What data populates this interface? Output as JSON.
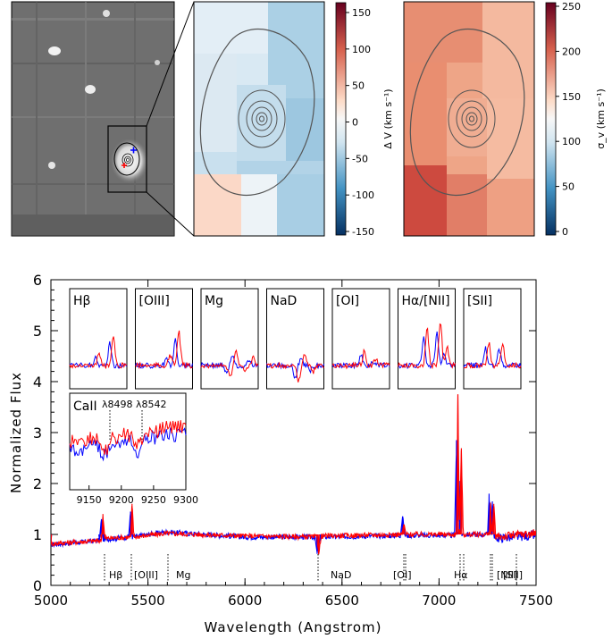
{
  "figure": {
    "panel_top_left": {
      "description_visible": false
    },
    "velocity_map": {
      "colorbar_ticks": [
        "150",
        "100",
        "50",
        "0",
        "-50",
        "-100",
        "-150"
      ],
      "colorbar_label": "Δ V (km s⁻¹)"
    },
    "dispersion_map": {
      "colorbar_ticks": [
        "250",
        "200",
        "150",
        "100",
        "50",
        "0"
      ],
      "colorbar_label": "σ_v (km s⁻¹)"
    }
  },
  "chart_data": [
    {
      "type": "line",
      "title": "",
      "xlabel": "Wavelength (Angstrom)",
      "ylabel": "Normalized Flux",
      "xlim": [
        5000,
        7500
      ],
      "ylim": [
        0,
        6
      ],
      "x_ticks": [
        "5000",
        "5500",
        "6000",
        "6500",
        "7000",
        "7500"
      ],
      "y_ticks": [
        "0",
        "1",
        "2",
        "3",
        "4",
        "5",
        "6"
      ],
      "series": [
        {
          "color": "#0000ff",
          "points": [
            [
              5000,
              0.8
            ],
            [
              5250,
              0.88
            ],
            [
              5260,
              1.3
            ],
            [
              5270,
              0.9
            ],
            [
              5400,
              0.95
            ],
            [
              5410,
              1.45
            ],
            [
              5420,
              0.95
            ],
            [
              5590,
              1.05
            ],
            [
              6000,
              0.95
            ],
            [
              6360,
              0.95
            ],
            [
              6372,
              0.62
            ],
            [
              6390,
              0.95
            ],
            [
              6800,
              0.98
            ],
            [
              6812,
              1.35
            ],
            [
              6825,
              0.98
            ],
            [
              7080,
              0.98
            ],
            [
              7090,
              2.85
            ],
            [
              7098,
              1.05
            ],
            [
              7108,
              2.05
            ],
            [
              7118,
              1.0
            ],
            [
              7250,
              1.0
            ],
            [
              7258,
              1.8
            ],
            [
              7266,
              1.0
            ],
            [
              7275,
              1.65
            ],
            [
              7285,
              0.92
            ],
            [
              7500,
              0.98
            ]
          ]
        },
        {
          "color": "#ff0000",
          "points": [
            [
              5000,
              0.82
            ],
            [
              5260,
              0.88
            ],
            [
              5268,
              1.4
            ],
            [
              5278,
              0.92
            ],
            [
              5410,
              0.95
            ],
            [
              5418,
              1.6
            ],
            [
              5428,
              0.95
            ],
            [
              5590,
              1.02
            ],
            [
              6000,
              0.97
            ],
            [
              6370,
              0.95
            ],
            [
              6380,
              0.65
            ],
            [
              6395,
              0.97
            ],
            [
              6810,
              1.0
            ],
            [
              6818,
              1.2
            ],
            [
              6830,
              1.0
            ],
            [
              7090,
              1.0
            ],
            [
              7097,
              3.75
            ],
            [
              7105,
              1.1
            ],
            [
              7115,
              2.65
            ],
            [
              7125,
              1.0
            ],
            [
              7258,
              1.0
            ],
            [
              7265,
              1.6
            ],
            [
              7273,
              1.0
            ],
            [
              7282,
              1.6
            ],
            [
              7292,
              0.95
            ],
            [
              7500,
              1.02
            ]
          ]
        }
      ],
      "line_labels": [
        "Hβ",
        "[OIII]",
        "Mg",
        "NaD",
        "[OI]",
        "Hα",
        "[NII]",
        "[SII]"
      ]
    },
    {
      "type": "line",
      "title": "",
      "panels": [
        "Hβ",
        "[OIII]",
        "Mg",
        "NaD",
        "[OI]",
        "Hα/[NII]",
        "[SII]"
      ]
    },
    {
      "type": "line",
      "title": "",
      "label": "CaII",
      "annotations": [
        "λ8498",
        "λ8542"
      ],
      "x_ticks": [
        "9150",
        "9200",
        "9250",
        "9300"
      ],
      "xlim": [
        9120,
        9300
      ]
    }
  ]
}
